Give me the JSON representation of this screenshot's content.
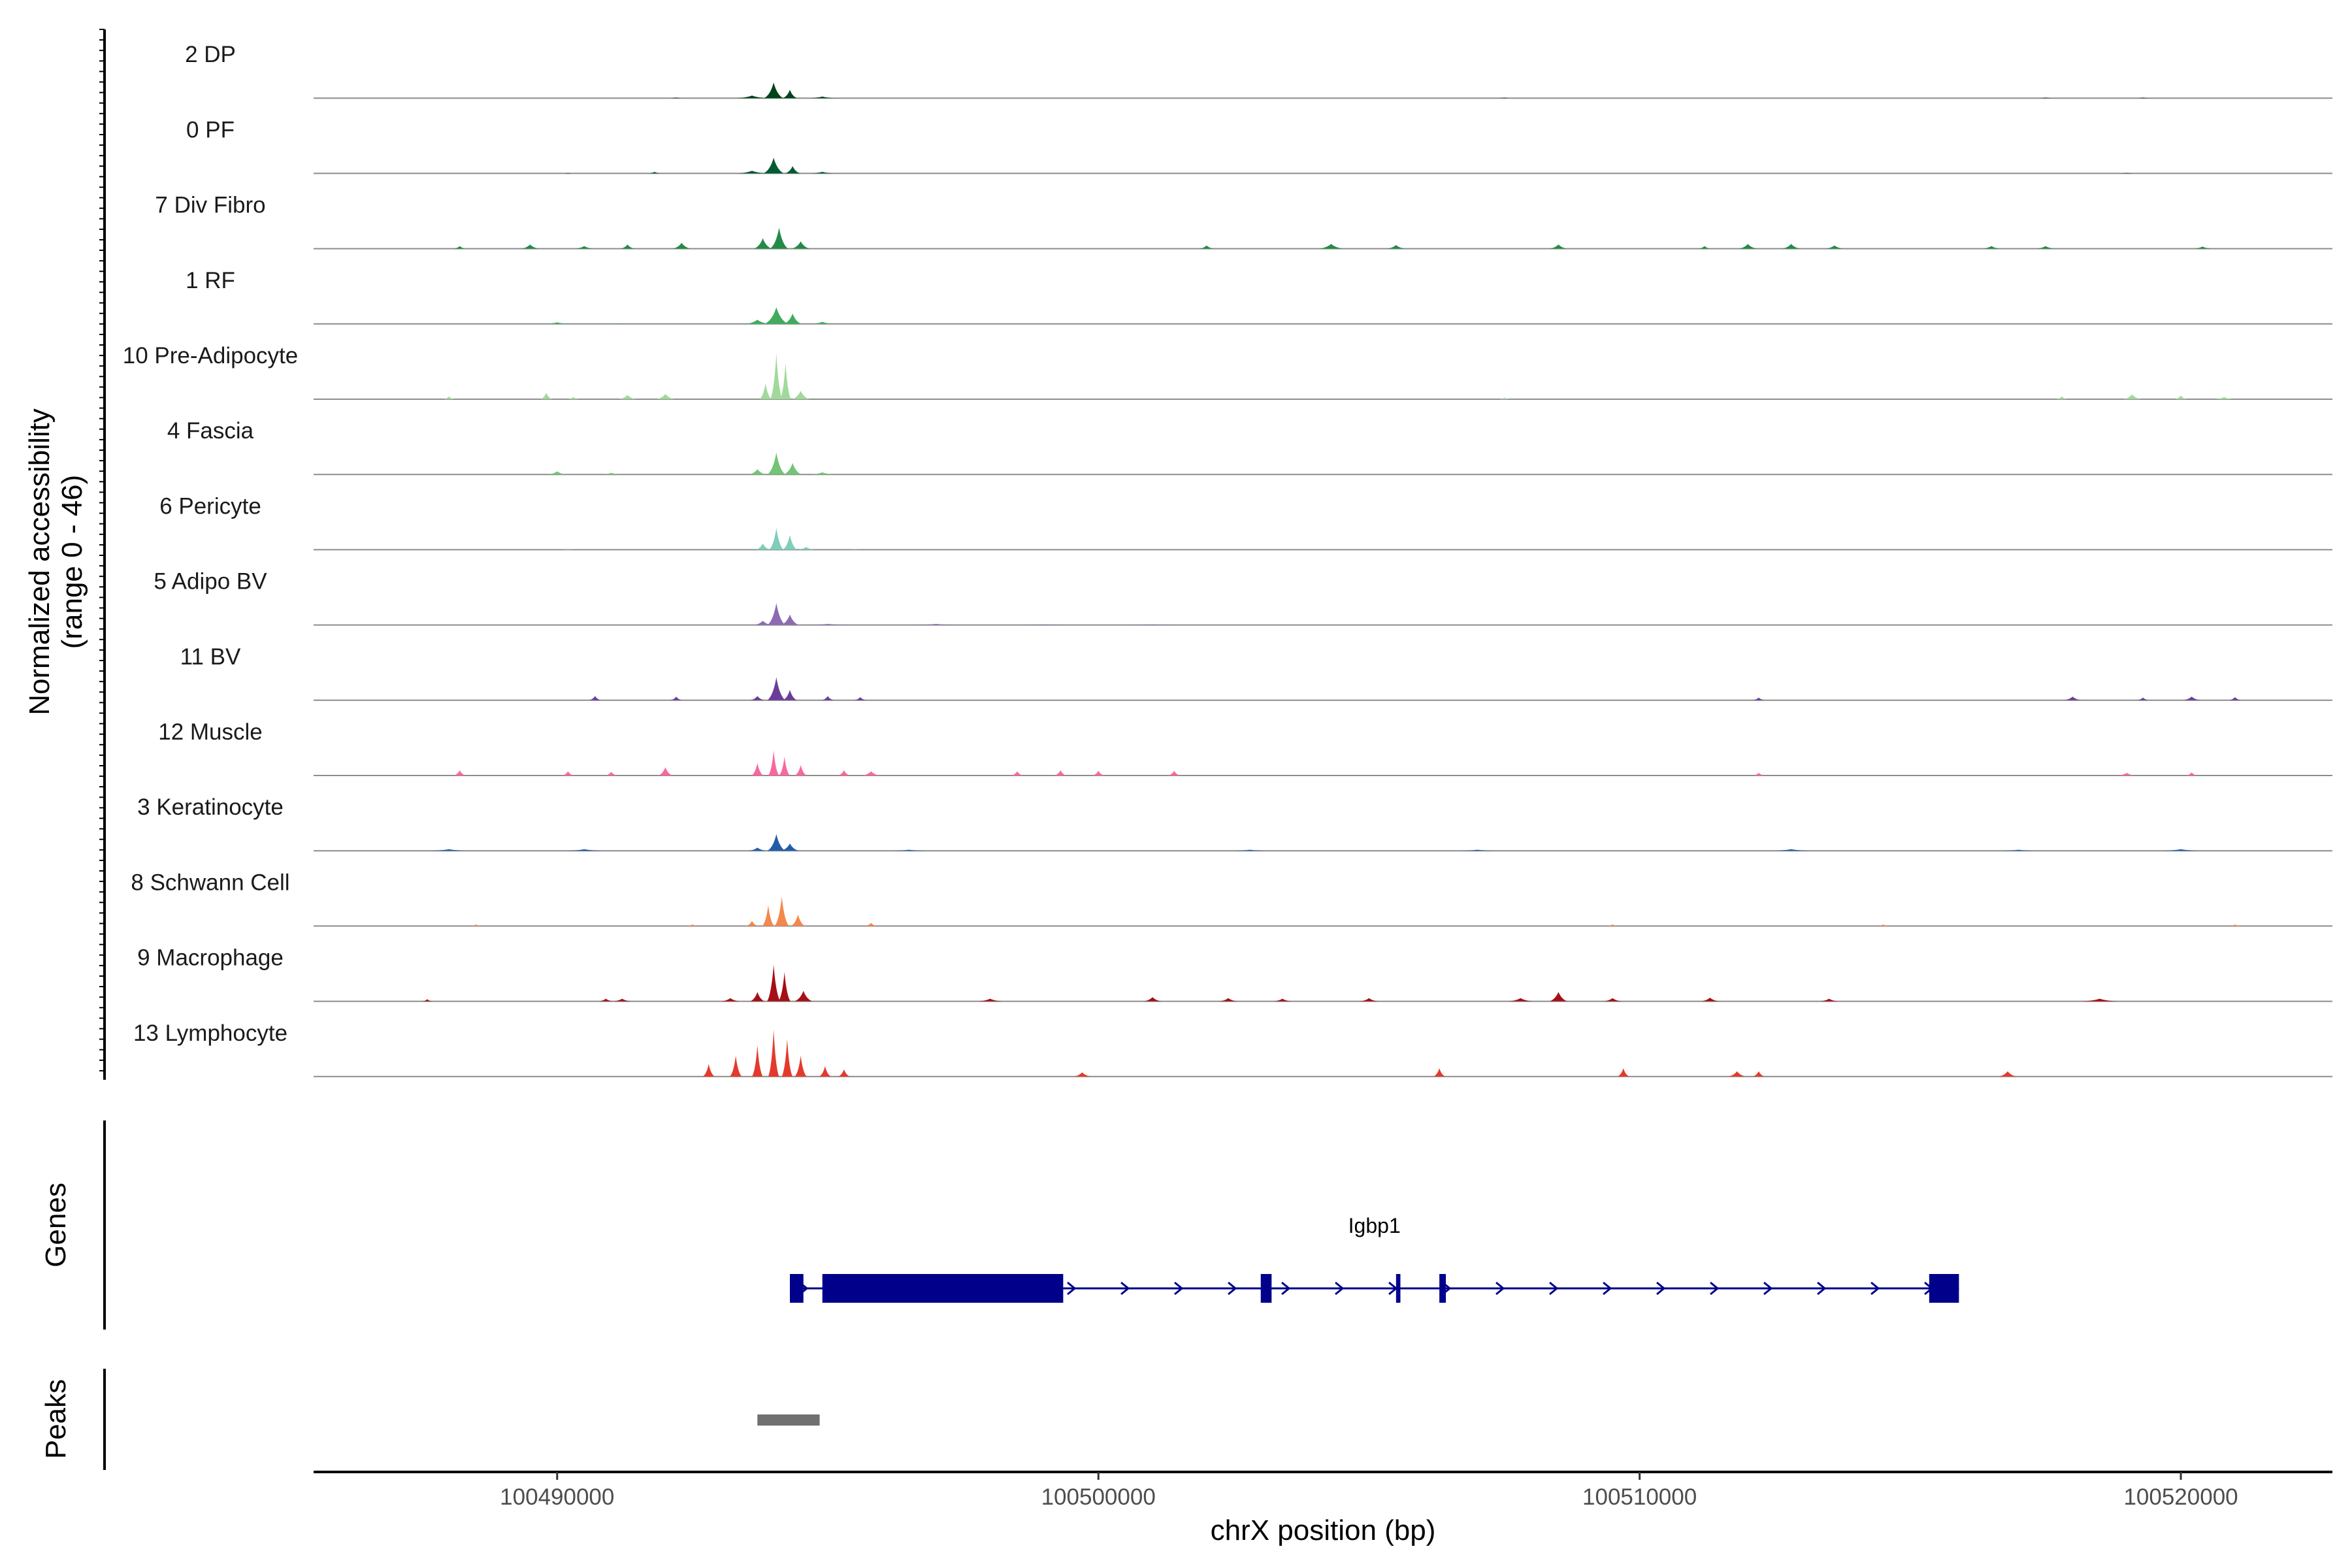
{
  "chart_data": {
    "type": "area",
    "title": "",
    "ylabel_line1": "Normalized accessibility",
    "ylabel_line2": "(range 0 - 46)",
    "y_range": [
      0,
      46
    ],
    "xlabel": "chrX position (bp)",
    "x_range": [
      100485500,
      100522800
    ],
    "x_ticks": [
      100490000,
      100500000,
      100510000,
      100520000
    ],
    "x_tick_labels": [
      "100490000",
      "100500000",
      "100510000",
      "100520000"
    ],
    "genes_label": "Genes",
    "peaks_label": "Peaks",
    "baseline_color": "#8c8c8c",
    "tracks": [
      {
        "name": "2 DP",
        "color": "#00441b",
        "peaks": [
          [
            100494000,
            30,
            160
          ],
          [
            100494300,
            16,
            120
          ],
          [
            100493600,
            5,
            250
          ],
          [
            100494900,
            3,
            200
          ],
          [
            100492200,
            1,
            100
          ],
          [
            100507500,
            1,
            80
          ],
          [
            100517500,
            1,
            100
          ],
          [
            100519300,
            1,
            100
          ]
        ]
      },
      {
        "name": "0 PF",
        "color": "#005a32",
        "peaks": [
          [
            100494000,
            30,
            170
          ],
          [
            100494350,
            14,
            130
          ],
          [
            100493600,
            5,
            250
          ],
          [
            100494900,
            3,
            200
          ],
          [
            100491800,
            3,
            100
          ],
          [
            100490200,
            1,
            100
          ],
          [
            100519000,
            1,
            150
          ]
        ]
      },
      {
        "name": "7 Div Fibro",
        "color": "#238b45",
        "peaks": [
          [
            100494100,
            40,
            150
          ],
          [
            100493800,
            20,
            150
          ],
          [
            100494500,
            14,
            150
          ],
          [
            100492300,
            11,
            150
          ],
          [
            100491300,
            8,
            120
          ],
          [
            100489500,
            8,
            150
          ],
          [
            100488200,
            5,
            100
          ],
          [
            100490500,
            5,
            150
          ],
          [
            100502000,
            6,
            120
          ],
          [
            100504300,
            9,
            200
          ],
          [
            100505500,
            7,
            150
          ],
          [
            100508500,
            8,
            150
          ],
          [
            100511200,
            5,
            100
          ],
          [
            100512000,
            9,
            150
          ],
          [
            100512800,
            9,
            150
          ],
          [
            100513600,
            6,
            150
          ],
          [
            100516500,
            5,
            150
          ],
          [
            100517500,
            5,
            150
          ],
          [
            100520400,
            4,
            150
          ]
        ]
      },
      {
        "name": "1 RF",
        "color": "#41ab5d",
        "peaks": [
          [
            100494050,
            32,
            200
          ],
          [
            100494350,
            20,
            150
          ],
          [
            100493700,
            8,
            200
          ],
          [
            100494900,
            4,
            200
          ],
          [
            100490000,
            3,
            200
          ],
          [
            100491200,
            1,
            200
          ]
        ]
      },
      {
        "name": "10 Pre-Adipocyte",
        "color": "#a1d99b",
        "peaks": [
          [
            100494050,
            88,
            100
          ],
          [
            100494220,
            70,
            90
          ],
          [
            100493850,
            30,
            100
          ],
          [
            100494500,
            16,
            150
          ],
          [
            100489800,
            12,
            100
          ],
          [
            100492000,
            10,
            150
          ],
          [
            100491300,
            8,
            150
          ],
          [
            100488000,
            5,
            100
          ],
          [
            100490300,
            4,
            100
          ],
          [
            100507500,
            3,
            100
          ],
          [
            100519100,
            9,
            150
          ],
          [
            100520000,
            7,
            100
          ],
          [
            100517800,
            5,
            100
          ],
          [
            100520800,
            4,
            150
          ]
        ]
      },
      {
        "name": "4 Fascia",
        "color": "#74c476",
        "peaks": [
          [
            100494050,
            42,
            150
          ],
          [
            100494350,
            22,
            150
          ],
          [
            100493700,
            10,
            150
          ],
          [
            100494900,
            4,
            200
          ],
          [
            100490000,
            6,
            150
          ],
          [
            100491000,
            3,
            150
          ]
        ]
      },
      {
        "name": "6 Pericyte",
        "color": "#7fcdbb",
        "peaks": [
          [
            100494050,
            42,
            120
          ],
          [
            100494300,
            28,
            120
          ],
          [
            100493800,
            12,
            120
          ],
          [
            100494600,
            5,
            150
          ],
          [
            100495500,
            1,
            150
          ],
          [
            100490200,
            1,
            150
          ]
        ]
      },
      {
        "name": "5 Adipo BV",
        "color": "#8c6bb1",
        "peaks": [
          [
            100494050,
            42,
            150
          ],
          [
            100494300,
            20,
            150
          ],
          [
            100493800,
            8,
            150
          ],
          [
            100495000,
            2,
            400
          ],
          [
            100497000,
            2,
            400
          ],
          [
            100499000,
            1,
            400
          ],
          [
            100501000,
            1,
            400
          ]
        ]
      },
      {
        "name": "11 BV",
        "color": "#6a3d9a",
        "peaks": [
          [
            100494050,
            44,
            150
          ],
          [
            100494300,
            20,
            120
          ],
          [
            100493700,
            8,
            120
          ],
          [
            100490700,
            8,
            100
          ],
          [
            100495000,
            8,
            100
          ],
          [
            100495600,
            6,
            100
          ],
          [
            100492200,
            7,
            100
          ],
          [
            100512200,
            5,
            100
          ],
          [
            100518000,
            7,
            150
          ],
          [
            100519300,
            5,
            100
          ],
          [
            100520200,
            7,
            150
          ],
          [
            100521000,
            6,
            100
          ]
        ]
      },
      {
        "name": "12 Muscle",
        "color": "#f768a1",
        "peaks": [
          [
            100494000,
            48,
            90
          ],
          [
            100494200,
            36,
            90
          ],
          [
            100494500,
            20,
            100
          ],
          [
            100493700,
            24,
            100
          ],
          [
            100492000,
            16,
            120
          ],
          [
            100488200,
            10,
            100
          ],
          [
            100490200,
            8,
            100
          ],
          [
            100491000,
            7,
            100
          ],
          [
            100495300,
            10,
            100
          ],
          [
            100495800,
            8,
            150
          ],
          [
            100498500,
            8,
            100
          ],
          [
            100499300,
            10,
            100
          ],
          [
            100500000,
            9,
            100
          ],
          [
            100501400,
            9,
            100
          ],
          [
            100512200,
            5,
            100
          ],
          [
            100519000,
            5,
            150
          ],
          [
            100520200,
            6,
            100
          ]
        ]
      },
      {
        "name": "3 Keratinocyte",
        "color": "#225ea8",
        "peaks": [
          [
            100494050,
            32,
            150
          ],
          [
            100494300,
            14,
            150
          ],
          [
            100493700,
            6,
            150
          ],
          [
            100488000,
            3,
            300
          ],
          [
            100490500,
            3,
            300
          ],
          [
            100496500,
            2,
            300
          ],
          [
            100502800,
            2,
            300
          ],
          [
            100507000,
            2,
            300
          ],
          [
            100512800,
            3,
            300
          ],
          [
            100517000,
            2,
            300
          ],
          [
            100520000,
            3,
            300
          ]
        ]
      },
      {
        "name": "8 Schwann Cell",
        "color": "#f4874b",
        "peaks": [
          [
            100494150,
            56,
            120
          ],
          [
            100493900,
            40,
            100
          ],
          [
            100494450,
            22,
            120
          ],
          [
            100493600,
            10,
            100
          ],
          [
            100495800,
            6,
            100
          ],
          [
            100492500,
            3,
            100
          ],
          [
            100488500,
            3,
            100
          ],
          [
            100509500,
            3,
            100
          ],
          [
            100514500,
            3,
            100
          ],
          [
            100521000,
            3,
            100
          ]
        ]
      },
      {
        "name": "9 Macrophage",
        "color": "#a50f15",
        "peaks": [
          [
            100494000,
            70,
            110
          ],
          [
            100494200,
            56,
            100
          ],
          [
            100494550,
            20,
            150
          ],
          [
            100493700,
            18,
            120
          ],
          [
            100493200,
            6,
            150
          ],
          [
            100491200,
            5,
            150
          ],
          [
            100487600,
            4,
            80
          ],
          [
            100490900,
            5,
            120
          ],
          [
            100498000,
            5,
            200
          ],
          [
            100501000,
            8,
            150
          ],
          [
            100502400,
            6,
            150
          ],
          [
            100503400,
            5,
            150
          ],
          [
            100505000,
            6,
            150
          ],
          [
            100507800,
            6,
            200
          ],
          [
            100508500,
            18,
            150
          ],
          [
            100509500,
            6,
            150
          ],
          [
            100511300,
            7,
            150
          ],
          [
            100513500,
            5,
            150
          ],
          [
            100518500,
            5,
            300
          ]
        ]
      },
      {
        "name": "13 Lymphocyte",
        "color": "#e33a2d",
        "peaks": [
          [
            100494000,
            90,
            90
          ],
          [
            100494250,
            72,
            90
          ],
          [
            100493700,
            60,
            90
          ],
          [
            100494500,
            40,
            100
          ],
          [
            100493300,
            40,
            100
          ],
          [
            100492800,
            24,
            100
          ],
          [
            100494950,
            20,
            100
          ],
          [
            100495300,
            14,
            100
          ],
          [
            100499700,
            8,
            150
          ],
          [
            100506300,
            16,
            100
          ],
          [
            100509700,
            16,
            100
          ],
          [
            100511800,
            10,
            150
          ],
          [
            100512200,
            10,
            100
          ],
          [
            100516800,
            10,
            150
          ]
        ]
      }
    ],
    "gene": {
      "name": "Igbp1",
      "color": "#00008b",
      "start": 100494300,
      "end": 100515900,
      "strand": "+",
      "exons": [
        [
          100494300,
          100494550
        ],
        [
          100494900,
          100499350
        ],
        [
          100503000,
          100503200
        ],
        [
          100505500,
          100505580
        ],
        [
          100506300,
          100506420
        ],
        [
          100515350,
          100515900
        ]
      ]
    },
    "peak_region": {
      "start": 100493700,
      "end": 100494850,
      "color": "#707070"
    }
  }
}
